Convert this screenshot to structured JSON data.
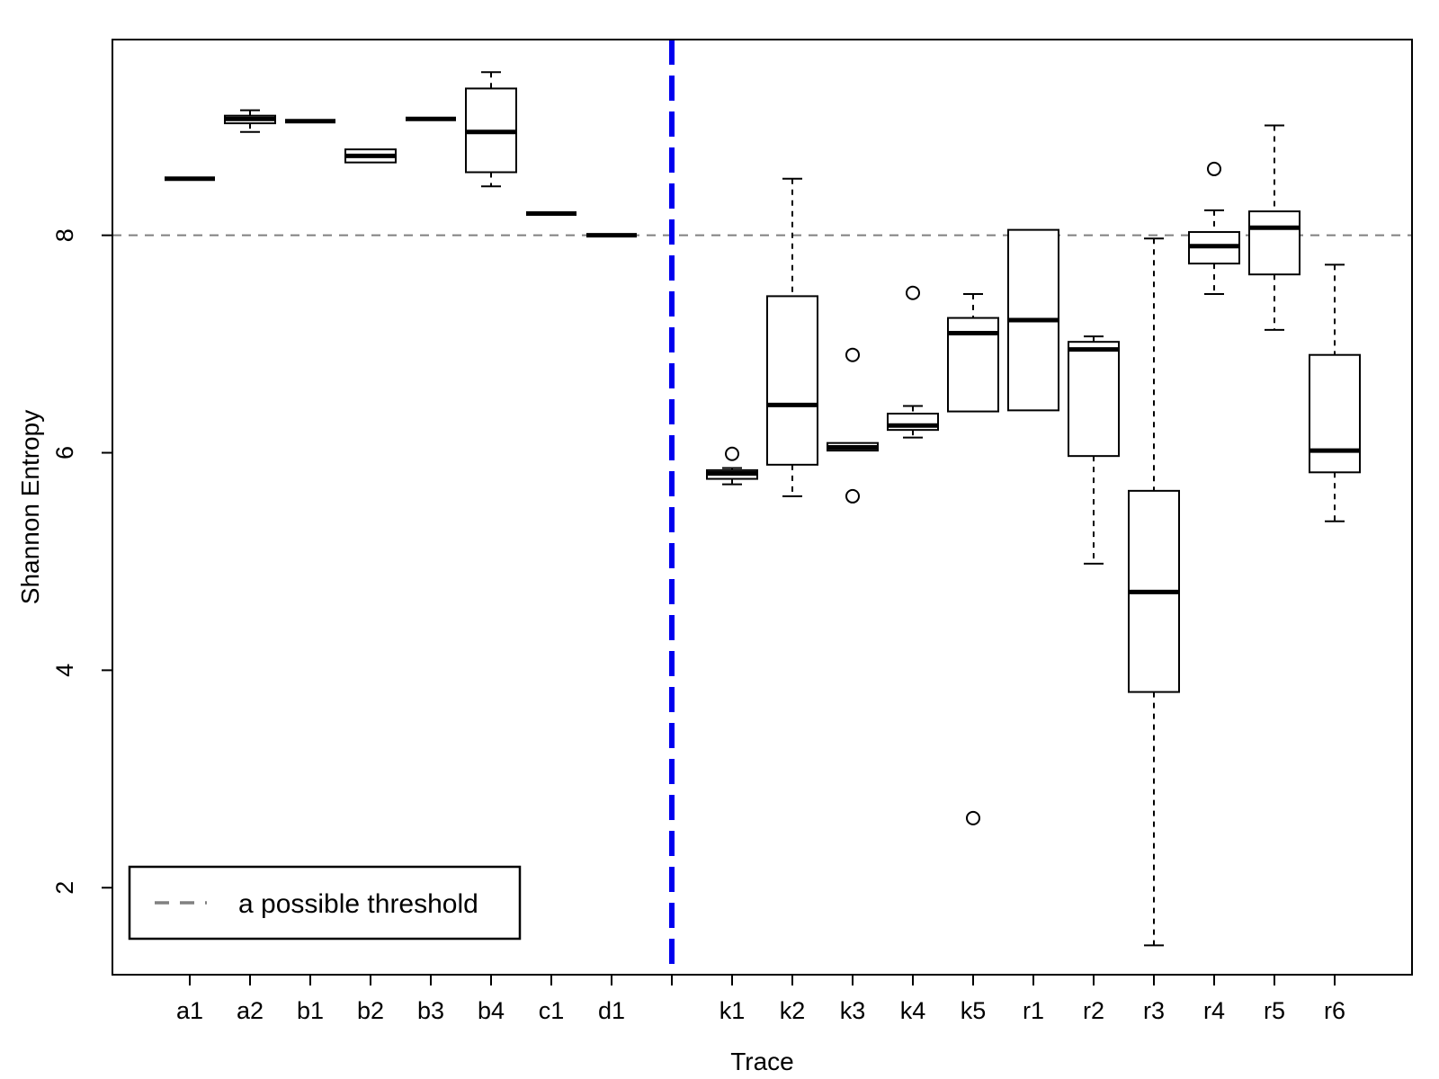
{
  "chart_data": {
    "type": "boxplot",
    "xlabel": "Trace",
    "ylabel": "Shannon Entropy",
    "ylim": [
      1.2,
      9.8
    ],
    "yticks": [
      2,
      4,
      6,
      8
    ],
    "categories": [
      "a1",
      "a2",
      "b1",
      "b2",
      "b3",
      "b4",
      "c1",
      "d1",
      "",
      "k1",
      "k2",
      "k3",
      "k4",
      "k5",
      "r1",
      "r2",
      "r3",
      "r4",
      "r5",
      "r6"
    ],
    "boxes": [
      {
        "label": "a1",
        "whisker_low": 8.52,
        "q1": 8.52,
        "median": 8.52,
        "q3": 8.52,
        "whisker_high": 8.52,
        "outliers": []
      },
      {
        "label": "a2",
        "whisker_low": 8.95,
        "q1": 9.03,
        "median": 9.07,
        "q3": 9.1,
        "whisker_high": 9.15,
        "outliers": []
      },
      {
        "label": "b1",
        "whisker_low": 9.05,
        "q1": 9.05,
        "median": 9.05,
        "q3": 9.05,
        "whisker_high": 9.05,
        "outliers": []
      },
      {
        "label": "b2",
        "whisker_low": 8.67,
        "q1": 8.67,
        "median": 8.73,
        "q3": 8.79,
        "whisker_high": 8.79,
        "outliers": []
      },
      {
        "label": "b3",
        "whisker_low": 9.07,
        "q1": 9.07,
        "median": 9.07,
        "q3": 9.07,
        "whisker_high": 9.07,
        "outliers": []
      },
      {
        "label": "b4",
        "whisker_low": 8.45,
        "q1": 8.58,
        "median": 8.95,
        "q3": 9.35,
        "whisker_high": 9.5,
        "outliers": []
      },
      {
        "label": "c1",
        "whisker_low": 8.2,
        "q1": 8.2,
        "median": 8.2,
        "q3": 8.2,
        "whisker_high": 8.2,
        "outliers": []
      },
      {
        "label": "d1",
        "whisker_low": 8.0,
        "q1": 8.0,
        "median": 8.0,
        "q3": 8.0,
        "whisker_high": 8.0,
        "outliers": []
      },
      {
        "label": "k1",
        "whisker_low": 5.71,
        "q1": 5.76,
        "median": 5.81,
        "q3": 5.84,
        "whisker_high": 5.86,
        "outliers": [
          5.99
        ]
      },
      {
        "label": "k2",
        "whisker_low": 5.6,
        "q1": 5.89,
        "median": 6.44,
        "q3": 7.44,
        "whisker_high": 8.52,
        "outliers": []
      },
      {
        "label": "k3",
        "whisker_low": 6.02,
        "q1": 6.02,
        "median": 6.05,
        "q3": 6.09,
        "whisker_high": 6.09,
        "outliers": [
          6.9,
          5.6
        ]
      },
      {
        "label": "k4",
        "whisker_low": 6.14,
        "q1": 6.21,
        "median": 6.25,
        "q3": 6.36,
        "whisker_high": 6.43,
        "outliers": [
          7.47
        ]
      },
      {
        "label": "k5",
        "whisker_low": 6.38,
        "q1": 6.38,
        "median": 7.1,
        "q3": 7.24,
        "whisker_high": 7.46,
        "outliers": [
          2.64
        ]
      },
      {
        "label": "r1",
        "whisker_low": 6.39,
        "q1": 6.39,
        "median": 7.22,
        "q3": 8.05,
        "whisker_high": 8.05,
        "outliers": []
      },
      {
        "label": "r2",
        "whisker_low": 4.98,
        "q1": 5.97,
        "median": 6.95,
        "q3": 7.02,
        "whisker_high": 7.07,
        "outliers": []
      },
      {
        "label": "r3",
        "whisker_low": 1.47,
        "q1": 3.8,
        "median": 4.72,
        "q3": 5.65,
        "whisker_high": 7.97,
        "outliers": []
      },
      {
        "label": "r4",
        "whisker_low": 7.46,
        "q1": 7.74,
        "median": 7.9,
        "q3": 8.03,
        "whisker_high": 8.23,
        "outliers": [
          8.61
        ]
      },
      {
        "label": "r5",
        "whisker_low": 7.13,
        "q1": 7.64,
        "median": 8.07,
        "q3": 8.22,
        "whisker_high": 9.01,
        "outliers": []
      },
      {
        "label": "r6",
        "whisker_low": 5.37,
        "q1": 5.82,
        "median": 6.02,
        "q3": 6.9,
        "whisker_high": 7.73,
        "outliers": []
      }
    ],
    "threshold": {
      "y": 8,
      "label": "a possible threshold",
      "color": "#808080",
      "style": "dashed"
    },
    "separator": {
      "category_index": 8,
      "color": "#0000ee",
      "style": "dashed"
    },
    "legend": {
      "placement": "bottom-left",
      "entries": [
        "a possible threshold"
      ]
    },
    "grid": false
  }
}
